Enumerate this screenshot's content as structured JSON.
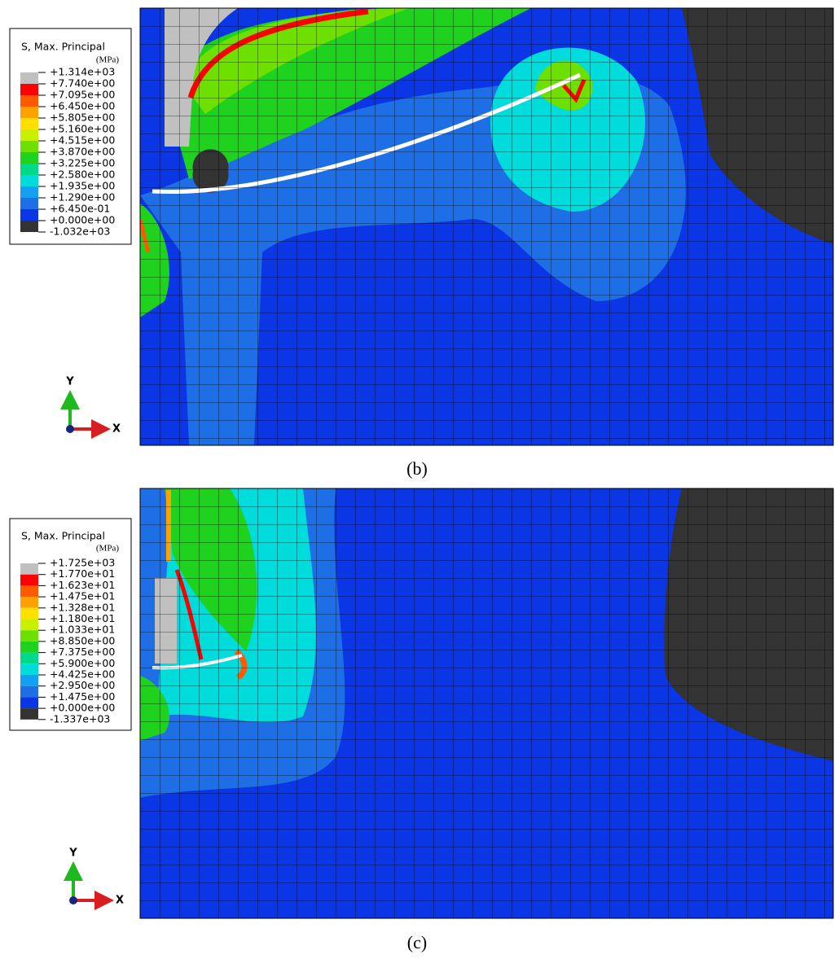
{
  "panels": [
    {
      "legend": {
        "title": "S, Max. Principal",
        "unit": "(MPa)",
        "labels": [
          "+1.314e+03",
          "+7.740e+00",
          "+7.095e+00",
          "+6.450e+00",
          "+5.805e+00",
          "+5.160e+00",
          "+4.515e+00",
          "+3.870e+00",
          "+3.225e+00",
          "+2.580e+00",
          "+1.935e+00",
          "+1.290e+00",
          "+6.450e-01",
          "+0.000e+00",
          "-1.032e+03"
        ],
        "colors": [
          "#c0c0c0",
          "#ff0000",
          "#ff5a00",
          "#ffa200",
          "#ffe000",
          "#c8f000",
          "#6ee000",
          "#1ed21e",
          "#00d88a",
          "#00dcdc",
          "#14a0f0",
          "#1e6ee6",
          "#0a36e6",
          "#333333"
        ]
      },
      "axis_y": "Y",
      "axis_x": "X",
      "caption": "(b)"
    },
    {
      "legend": {
        "title": "S, Max. Principal",
        "unit": "(MPa)",
        "labels": [
          "+1.725e+03",
          "+1.770e+01",
          "+1.623e+01",
          "+1.475e+01",
          "+1.328e+01",
          "+1.180e+01",
          "+1.033e+01",
          "+8.850e+00",
          "+7.375e+00",
          "+5.900e+00",
          "+4.425e+00",
          "+2.950e+00",
          "+1.475e+00",
          "+0.000e+00",
          "-1.337e+03"
        ],
        "colors": [
          "#c0c0c0",
          "#ff0000",
          "#ff5a00",
          "#ffa200",
          "#ffe000",
          "#c8f000",
          "#6ee000",
          "#1ed21e",
          "#00d88a",
          "#00dcdc",
          "#14a0f0",
          "#1e6ee6",
          "#0a36e6",
          "#333333"
        ]
      },
      "axis_y": "Y",
      "axis_x": "X",
      "caption": "(c)"
    }
  ]
}
